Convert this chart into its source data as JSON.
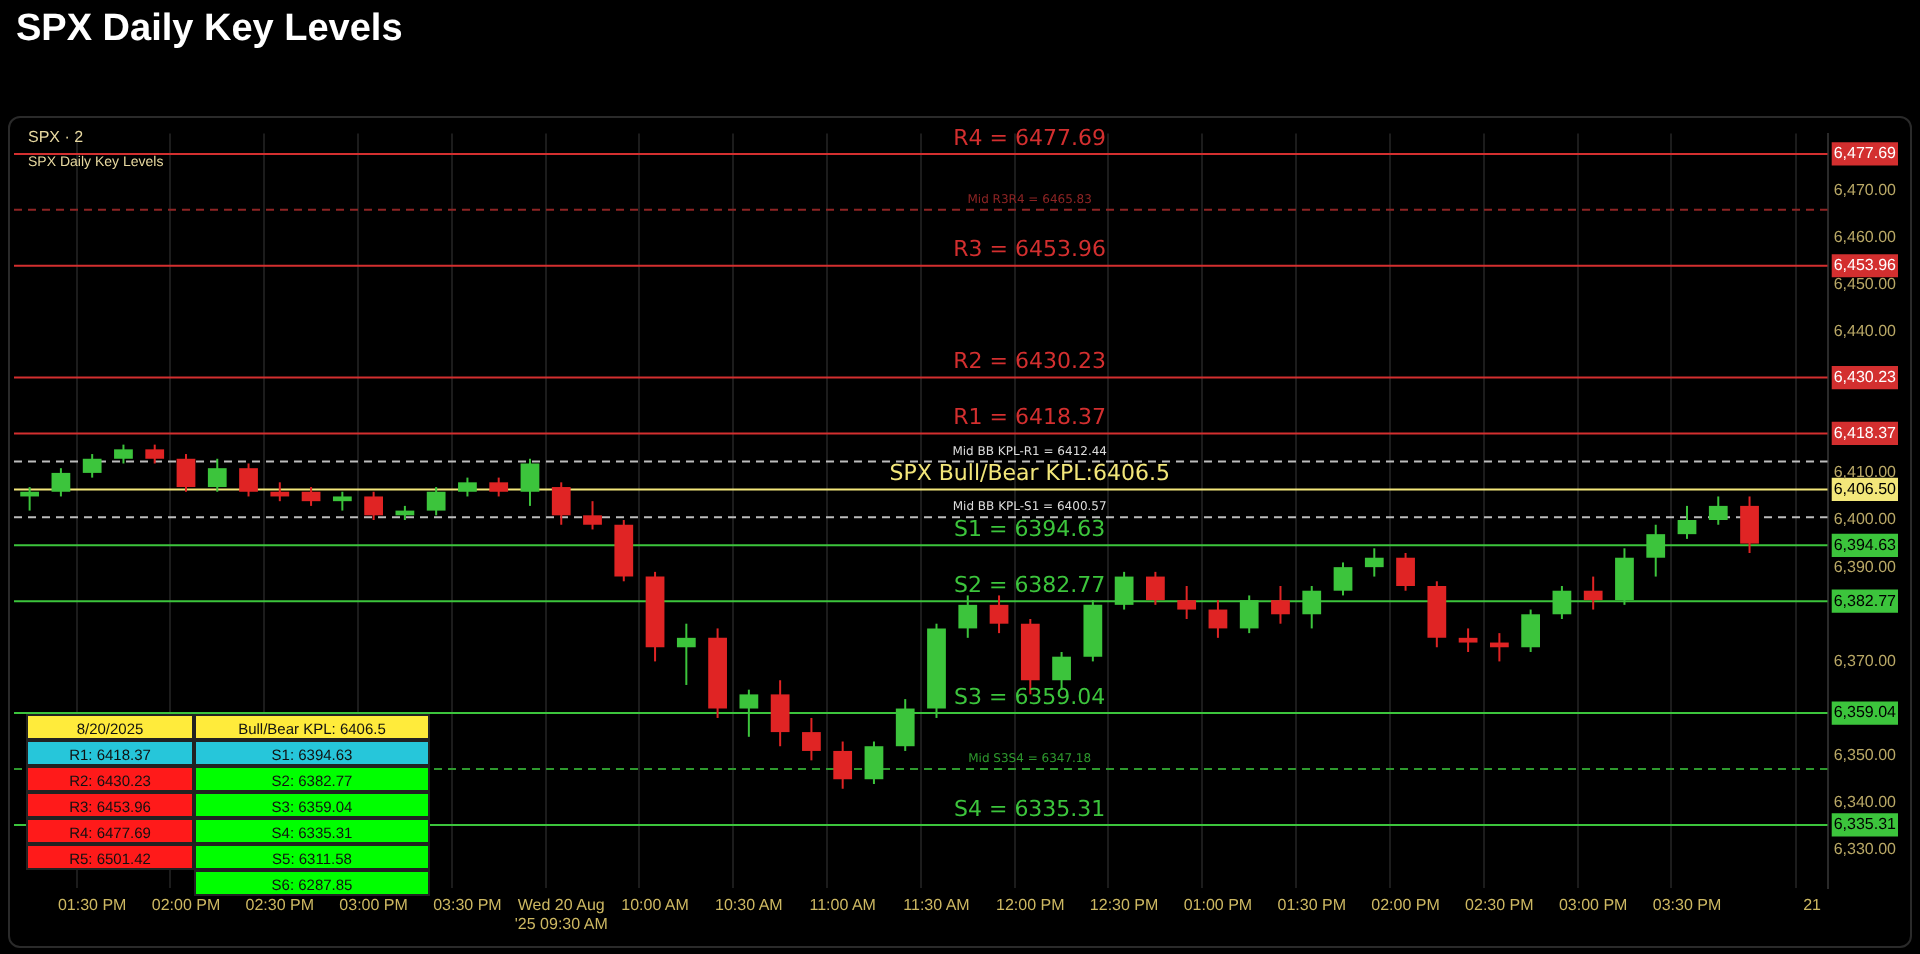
{
  "chart_data": {
    "type": "candlestick",
    "title": "SPX Daily Key Levels",
    "subtitle": "SPX · 2",
    "categories": [
      null,
      null,
      "01:30 PM",
      null,
      null,
      "02:00 PM",
      null,
      null,
      "02:30 PM",
      null,
      null,
      "03:00 PM",
      null,
      null,
      "03:30 PM",
      null,
      null,
      "Wed 20 Aug '25 09:30 AM",
      null,
      null,
      "10:00 AM",
      null,
      null,
      "10:30 AM",
      null,
      null,
      "11:00 AM",
      null,
      null,
      "11:30 AM",
      null,
      null,
      "12:00 PM",
      null,
      null,
      "12:30 PM",
      null,
      null,
      "01:00 PM",
      null,
      null,
      "01:30 PM",
      null,
      null,
      "02:00 PM",
      null,
      null,
      "02:30 PM",
      null,
      null,
      "03:00 PM",
      null,
      null,
      "03:30 PM",
      null,
      null,
      null,
      "21"
    ],
    "ohlc": [
      [
        6405,
        6407,
        6402,
        6406
      ],
      [
        6406,
        6411,
        6405,
        6410
      ],
      [
        6410,
        6414,
        6409,
        6413
      ],
      [
        6413,
        6416,
        6412,
        6415
      ],
      [
        6415,
        6416,
        6412,
        6413
      ],
      [
        6413,
        6414,
        6406,
        6407
      ],
      [
        6407,
        6413,
        6406,
        6411
      ],
      [
        6411,
        6412,
        6405,
        6406
      ],
      [
        6406,
        6408,
        6404,
        6405
      ],
      [
        6406,
        6407,
        6403,
        6404
      ],
      [
        6404,
        6406,
        6402,
        6405
      ],
      [
        6405,
        6406,
        6400,
        6401
      ],
      [
        6401,
        6403,
        6400,
        6402
      ],
      [
        6402,
        6407,
        6401,
        6406
      ],
      [
        6406,
        6409,
        6405,
        6408
      ],
      [
        6408,
        6409,
        6405,
        6406
      ],
      [
        6406,
        6413,
        6403,
        6412
      ],
      [
        6407,
        6408,
        6399,
        6401
      ],
      [
        6401,
        6404,
        6398,
        6399
      ],
      [
        6399,
        6400,
        6387,
        6388
      ],
      [
        6388,
        6389,
        6370,
        6373
      ],
      [
        6373,
        6378,
        6365,
        6375
      ],
      [
        6375,
        6377,
        6358,
        6360
      ],
      [
        6360,
        6364,
        6354,
        6363
      ],
      [
        6363,
        6366,
        6352,
        6355
      ],
      [
        6355,
        6358,
        6349,
        6351
      ],
      [
        6351,
        6353,
        6343,
        6345
      ],
      [
        6345,
        6353,
        6344,
        6352
      ],
      [
        6352,
        6362,
        6351,
        6360
      ],
      [
        6360,
        6378,
        6358,
        6377
      ],
      [
        6377,
        6384,
        6375,
        6382
      ],
      [
        6382,
        6384,
        6376,
        6378
      ],
      [
        6378,
        6379,
        6363,
        6366
      ],
      [
        6366,
        6372,
        6364,
        6371
      ],
      [
        6371,
        6383,
        6370,
        6382
      ],
      [
        6382,
        6389,
        6381,
        6388
      ],
      [
        6388,
        6389,
        6382,
        6383
      ],
      [
        6383,
        6386,
        6379,
        6381
      ],
      [
        6381,
        6383,
        6375,
        6377
      ],
      [
        6377,
        6384,
        6376,
        6383
      ],
      [
        6383,
        6386,
        6378,
        6380
      ],
      [
        6380,
        6386,
        6377,
        6385
      ],
      [
        6385,
        6391,
        6384,
        6390
      ],
      [
        6390,
        6394,
        6388,
        6392
      ],
      [
        6392,
        6393,
        6385,
        6386
      ],
      [
        6386,
        6387,
        6373,
        6375
      ],
      [
        6375,
        6377,
        6372,
        6374
      ],
      [
        6374,
        6376,
        6370,
        6373
      ],
      [
        6373,
        6381,
        6372,
        6380
      ],
      [
        6380,
        6386,
        6379,
        6385
      ],
      [
        6385,
        6388,
        6381,
        6383
      ],
      [
        6383,
        6394,
        6382,
        6392
      ],
      [
        6392,
        6399,
        6388,
        6397
      ],
      [
        6397,
        6403,
        6396,
        6400
      ],
      [
        6400,
        6405,
        6399,
        6403
      ],
      [
        6403,
        6405,
        6393,
        6395
      ],
      null,
      null
    ],
    "ylim": [
      6322,
      6482
    ],
    "yticks": [
      {
        "value": 6330,
        "label": "6,330.00"
      },
      {
        "value": 6335.31,
        "label": "6,335.31"
      },
      {
        "value": 6340,
        "label": "6,340.00"
      },
      {
        "value": 6350,
        "label": "6,350.00"
      },
      {
        "value": 6359.04,
        "label": "6,359.04"
      },
      {
        "value": 6370,
        "label": "6,370.00"
      },
      {
        "value": 6382.77,
        "label": "6,382.77"
      },
      {
        "value": 6390,
        "label": "6,390.00"
      },
      {
        "value": 6394.63,
        "label": "6,394.63"
      },
      {
        "value": 6400,
        "label": "6,400.00"
      },
      {
        "value": 6406.5,
        "label": "6,406.50"
      },
      {
        "value": 6410,
        "label": "6,410.00"
      },
      {
        "value": 6418.37,
        "label": "6,418.37"
      },
      {
        "value": 6430.23,
        "label": "6,430.23"
      },
      {
        "value": 6440,
        "label": "6,440.00"
      },
      {
        "value": 6450,
        "label": "6,450.00"
      },
      {
        "value": 6453.96,
        "label": "6,453.96"
      },
      {
        "value": 6460,
        "label": "6,460.00"
      },
      {
        "value": 6470,
        "label": "6,470.00"
      },
      {
        "value": 6477.69,
        "label": "6,477.69"
      }
    ],
    "grid": "x",
    "ref_lines": [
      {
        "axis": "y",
        "value": 6477.69,
        "label": "R4 = 6477.69",
        "color": "#d32f2f",
        "line_style": "solid"
      },
      {
        "axis": "y",
        "value": 6465.83,
        "label": "Mid R3R4 = 6465.83",
        "color": "#8e2424",
        "line_style": "dashed"
      },
      {
        "axis": "y",
        "value": 6453.96,
        "label": "R3 = 6453.96",
        "color": "#d32f2f",
        "line_style": "solid"
      },
      {
        "axis": "y",
        "value": 6430.23,
        "label": "R2 = 6430.23",
        "color": "#d32f2f",
        "line_style": "solid"
      },
      {
        "axis": "y",
        "value": 6418.37,
        "label": "R1 = 6418.37",
        "color": "#d32f2f",
        "line_style": "solid"
      },
      {
        "axis": "y",
        "value": 6412.44,
        "label": "Mid BB KPL-R1 = 6412.44",
        "color": "#bdbdbd",
        "line_style": "dashed"
      },
      {
        "axis": "y",
        "value": 6406.5,
        "label": "SPX Bull/Bear KPL:6406.5",
        "color": "#f3e77a",
        "line_style": "solid"
      },
      {
        "axis": "y",
        "value": 6400.57,
        "label": "Mid BB KPL-S1 = 6400.57",
        "color": "#bdbdbd",
        "line_style": "dashed"
      },
      {
        "axis": "y",
        "value": 6394.63,
        "label": "S1 = 6394.63",
        "color": "#3cc43c",
        "line_style": "solid"
      },
      {
        "axis": "y",
        "value": 6382.77,
        "label": "S2 = 6382.77",
        "color": "#3cc43c",
        "line_style": "solid"
      },
      {
        "axis": "y",
        "value": 6359.04,
        "label": "S3 = 6359.04",
        "color": "#3cc43c",
        "line_style": "solid"
      },
      {
        "axis": "y",
        "value": 6347.18,
        "label": "Mid S3S4 = 6347.18",
        "color": "#2e9a2e",
        "line_style": "dashed"
      },
      {
        "axis": "y",
        "value": 6335.31,
        "label": "S4 = 6335.31",
        "color": "#3cc43c",
        "line_style": "solid"
      }
    ],
    "annotations": [
      "SPX Daily Key Levels",
      "8/20/2025",
      "R1: 6418.37",
      "R2: 6430.23",
      "R3: 6453.96",
      "R4: 6477.69",
      "R5: 6501.42",
      "Bull/Bear KPL: 6406.5",
      "S1: 6394.63",
      "S2: 6382.77",
      "S3: 6359.04",
      "S4: 6335.31",
      "S5: 6311.58",
      "S6: 6287.85"
    ]
  }
}
